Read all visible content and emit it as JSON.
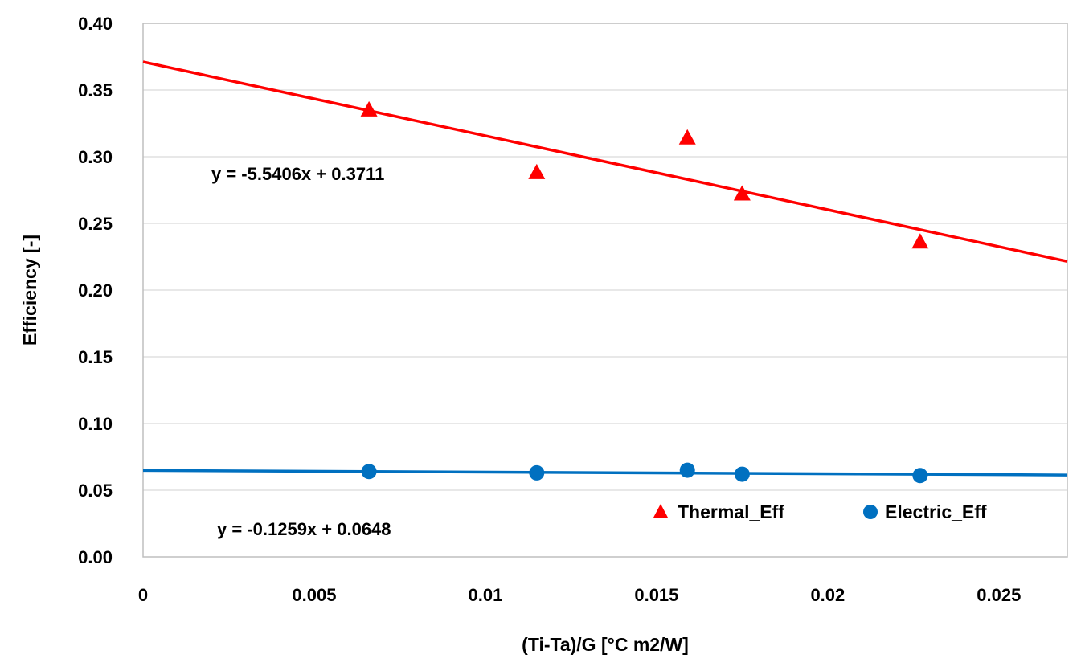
{
  "chart_data": {
    "type": "scatter",
    "xlabel": "(Ti-Ta)/G [°C m2/W]",
    "ylabel": "Efficiency [-]",
    "xlim": [
      0,
      0.027
    ],
    "ylim": [
      0,
      0.4
    ],
    "x_ticks": [
      "0",
      "0.005",
      "0.01",
      "0.015",
      "0.02",
      "0.025"
    ],
    "y_ticks": [
      "0.00",
      "0.05",
      "0.10",
      "0.15",
      "0.20",
      "0.25",
      "0.30",
      "0.35",
      "0.40"
    ],
    "grid": "horizontal",
    "legend_position": "bottom-right",
    "series": [
      {
        "name": "Thermal_Eff",
        "marker": "triangle",
        "color": "#ff0000",
        "x": [
          0.0066,
          0.0115,
          0.0159,
          0.0175,
          0.0227
        ],
        "y": [
          0.335,
          0.288,
          0.314,
          0.272,
          0.236
        ],
        "trendline": {
          "slope": -5.5406,
          "intercept": 0.3711,
          "equation": "y = -5.5406x + 0.3711"
        }
      },
      {
        "name": "Electric_Eff",
        "marker": "circle",
        "color": "#0070c0",
        "x": [
          0.0066,
          0.0115,
          0.0159,
          0.0175,
          0.0227
        ],
        "y": [
          0.064,
          0.063,
          0.065,
          0.062,
          0.061
        ],
        "trendline": {
          "slope": -0.1259,
          "intercept": 0.0648,
          "equation": "y = -0.1259x + 0.0648"
        }
      }
    ]
  }
}
